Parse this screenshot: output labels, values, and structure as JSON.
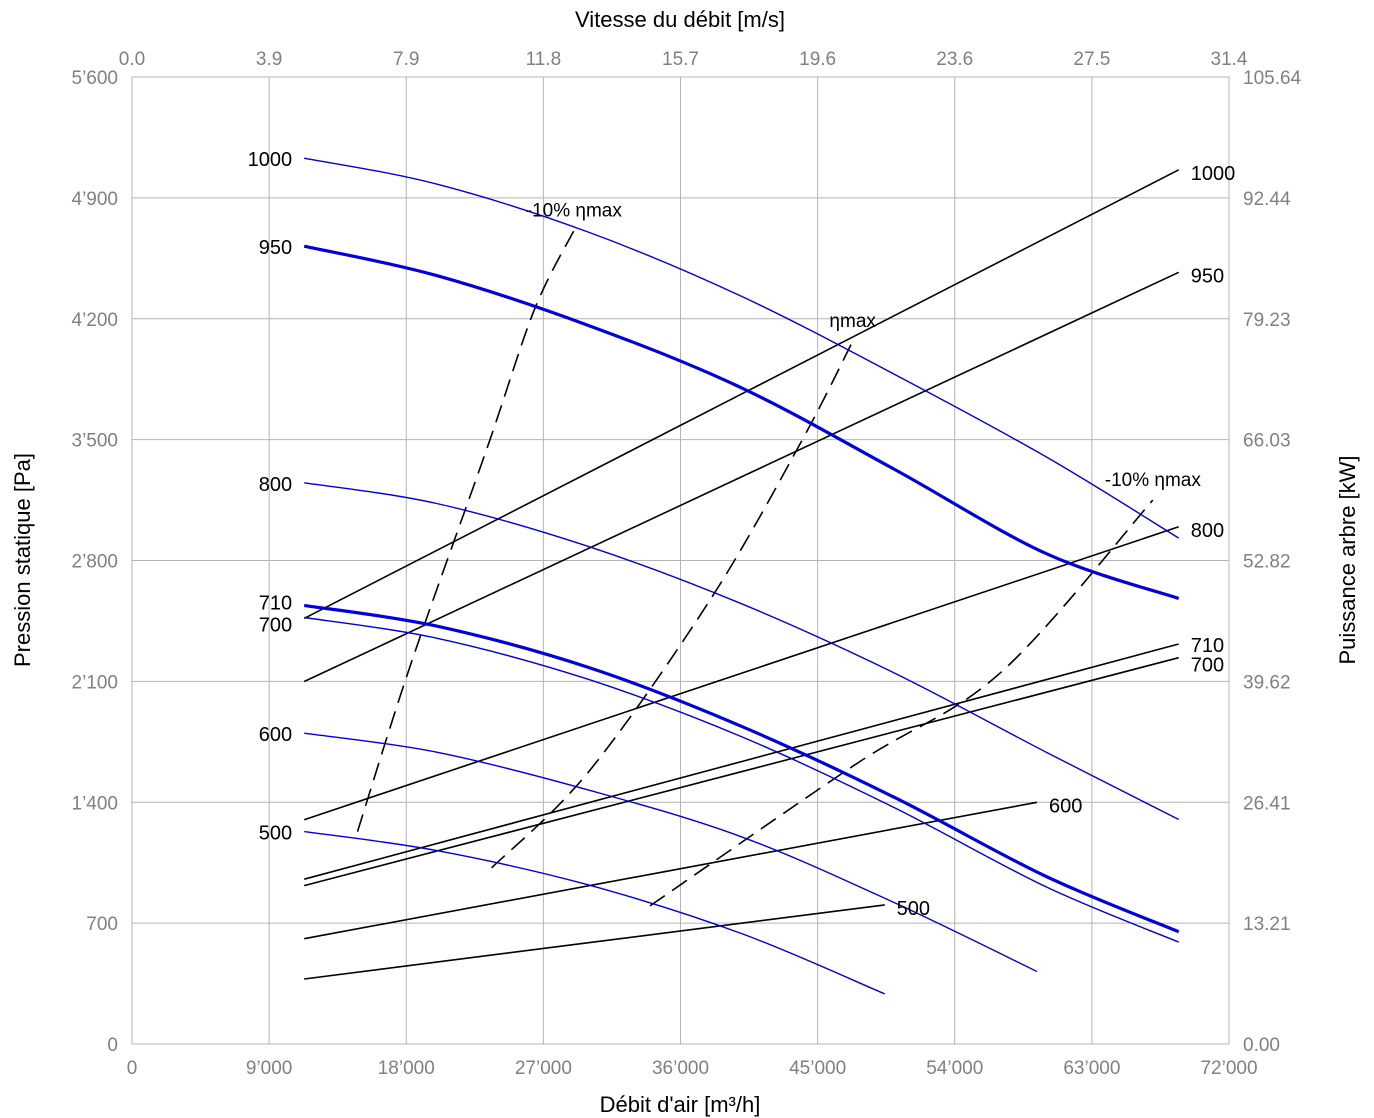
{
  "chart_data": {
    "type": "line",
    "xlabel": "Débit d'air [m³/h]",
    "ylabel": "Pression statique [Pa]",
    "x2label": "Vitesse du débit [m/s]",
    "y2label": "Puissance arbre [kW]",
    "xlim": [
      0,
      72000
    ],
    "ylim": [
      0,
      5600
    ],
    "x2lim": [
      0,
      31.4
    ],
    "y2lim": [
      0,
      105.64
    ],
    "grid": true,
    "x_ticks": [
      "0",
      "9’000",
      "18’000",
      "27’000",
      "36’000",
      "45’000",
      "54’000",
      "63’000",
      "72’000"
    ],
    "y_ticks": [
      "0",
      "700",
      "1’400",
      "2’100",
      "2’800",
      "3’500",
      "4’200",
      "4’900",
      "5’600"
    ],
    "x2_ticks": [
      "0.0",
      "3.9",
      "7.9",
      "11.8",
      "15.7",
      "19.6",
      "23.6",
      "27.5",
      "31.4"
    ],
    "y2_ticks": [
      "0.00",
      "13.21",
      "26.41",
      "39.62",
      "52.82",
      "66.03",
      "79.23",
      "92.44",
      "105.64"
    ],
    "colors": {
      "pressure": "#0000dd",
      "power": "#000000",
      "grid": "#b4b4b4",
      "tick": "#808080"
    },
    "pressure_curves": [
      {
        "label": "1000",
        "bold": false,
        "x": [
          11300,
          20000,
          30000,
          40000,
          50000,
          60000,
          68700
        ],
        "y": [
          5130,
          4980,
          4700,
          4330,
          3880,
          3400,
          2930
        ]
      },
      {
        "label": "950",
        "bold": true,
        "x": [
          11300,
          20000,
          30000,
          40000,
          50000,
          60000,
          68700
        ],
        "y": [
          4620,
          4450,
          4160,
          3800,
          3330,
          2840,
          2580
        ]
      },
      {
        "label": "800",
        "bold": false,
        "x": [
          11300,
          20000,
          30000,
          40000,
          50000,
          60000,
          68700
        ],
        "y": [
          3250,
          3130,
          2880,
          2550,
          2150,
          1690,
          1300
        ]
      },
      {
        "label": "710",
        "bold": true,
        "x": [
          11300,
          20000,
          30000,
          40000,
          50000,
          60000,
          68700
        ],
        "y": [
          2540,
          2420,
          2180,
          1840,
          1430,
          970,
          650
        ]
      },
      {
        "label": "700",
        "bold": false,
        "x": [
          11300,
          20000,
          30000,
          40000,
          50000,
          60000,
          68700
        ],
        "y": [
          2470,
          2350,
          2110,
          1780,
          1370,
          910,
          590
        ]
      },
      {
        "label": "600",
        "bold": false,
        "x": [
          11300,
          20000,
          30000,
          40000,
          50000,
          59400
        ],
        "y": [
          1800,
          1690,
          1470,
          1200,
          820,
          420
        ]
      },
      {
        "label": "500",
        "bold": false,
        "x": [
          11300,
          20000,
          30000,
          40000,
          49400
        ],
        "y": [
          1230,
          1120,
          920,
          640,
          290
        ]
      }
    ],
    "power_curves": [
      {
        "label": "1000",
        "x": [
          11300,
          68700
        ],
        "y": [
          46.5,
          95.5
        ]
      },
      {
        "label": "950",
        "x": [
          11300,
          68700
        ],
        "y": [
          39.6,
          84.3
        ]
      },
      {
        "label": "800",
        "x": [
          11300,
          68700
        ],
        "y": [
          24.5,
          56.5
        ]
      },
      {
        "label": "710",
        "x": [
          11300,
          68700
        ],
        "y": [
          18.0,
          43.7
        ]
      },
      {
        "label": "700",
        "x": [
          11300,
          68700
        ],
        "y": [
          17.3,
          42.2
        ]
      },
      {
        "label": "600",
        "x": [
          11300,
          59400
        ],
        "y": [
          11.5,
          26.4
        ]
      },
      {
        "label": "500",
        "x": [
          11300,
          49400
        ],
        "y": [
          7.1,
          15.2
        ]
      }
    ],
    "efficiency_lines": [
      {
        "label": "-10% ηmax",
        "x": [
          14800,
          18300,
          23300,
          26400,
          29000
        ],
        "y": [
          1230,
          2200,
          3450,
          4250,
          4710
        ]
      },
      {
        "label": "ηmax",
        "x": [
          23600,
          30000,
          38000,
          44000,
          47300
        ],
        "y": [
          1020,
          1580,
          2580,
          3500,
          4070
        ]
      },
      {
        "label": "-10% ηmax",
        "x": [
          34000,
          47500,
          57000,
          67000
        ],
        "y": [
          800,
          1620,
          2150,
          3150
        ]
      }
    ],
    "annotations": [
      {
        "text": "-10% ηmax"
      },
      {
        "text": "ηmax"
      },
      {
        "text": "-10% ηmax"
      }
    ]
  }
}
